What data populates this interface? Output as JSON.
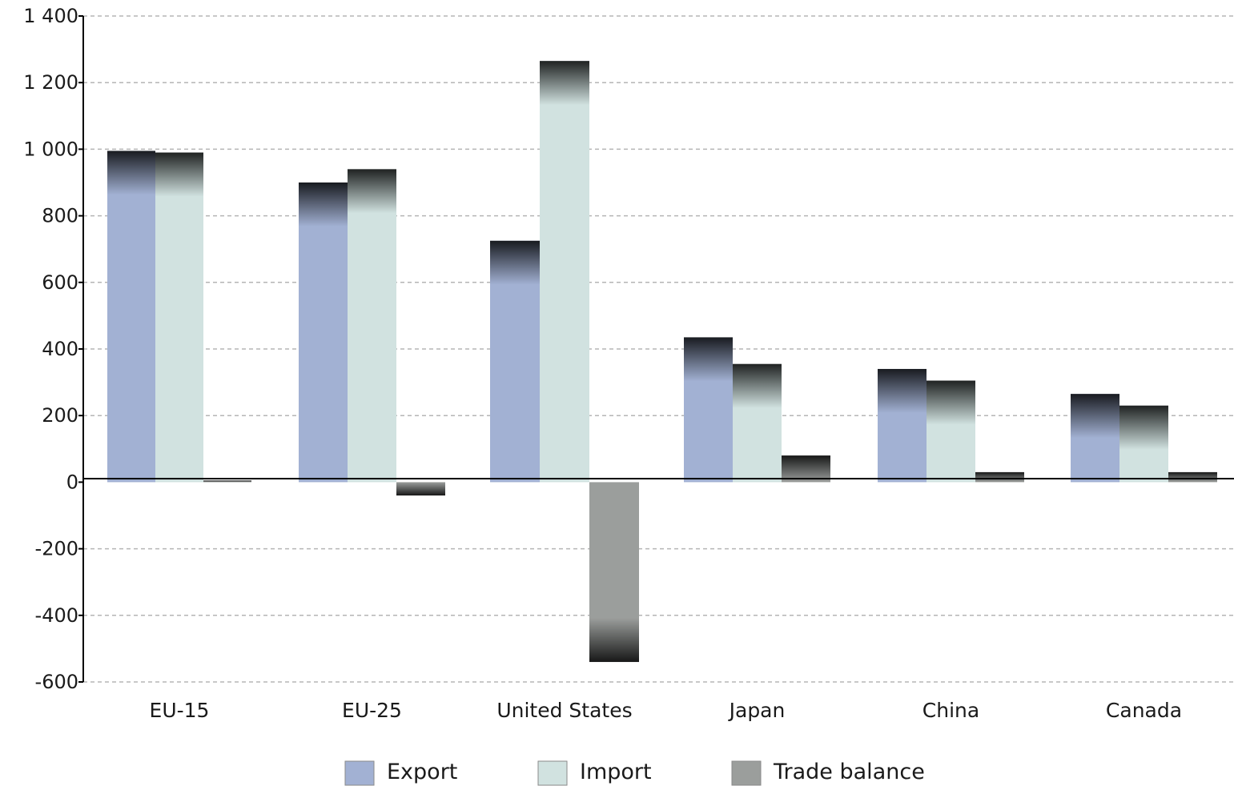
{
  "chart_data": {
    "type": "bar",
    "title": "",
    "xlabel": "",
    "ylabel": "",
    "ylim": [
      -600,
      1400
    ],
    "yticks": [
      1400,
      1200,
      1000,
      800,
      600,
      400,
      200,
      0,
      -200,
      -400,
      -600
    ],
    "ytick_labels": [
      "1 400",
      "1 200",
      "1 000",
      "800",
      "600",
      "400",
      "200",
      "0",
      "-200",
      "-400",
      "-600"
    ],
    "grid": true,
    "legend_position": "bottom-center",
    "categories": [
      "EU-15",
      "EU-25",
      "United States",
      "Japan",
      "China",
      "Canada"
    ],
    "series": [
      {
        "name": "Export",
        "color": "#a2b1d3",
        "values": [
          995,
          900,
          725,
          435,
          340,
          265
        ]
      },
      {
        "name": "Import",
        "color": "#d1e2e0",
        "values": [
          990,
          940,
          1265,
          355,
          305,
          230
        ]
      },
      {
        "name": "Trade balance",
        "color": "#9b9e9c",
        "values": [
          5,
          -40,
          -540,
          80,
          30,
          30
        ]
      }
    ]
  }
}
